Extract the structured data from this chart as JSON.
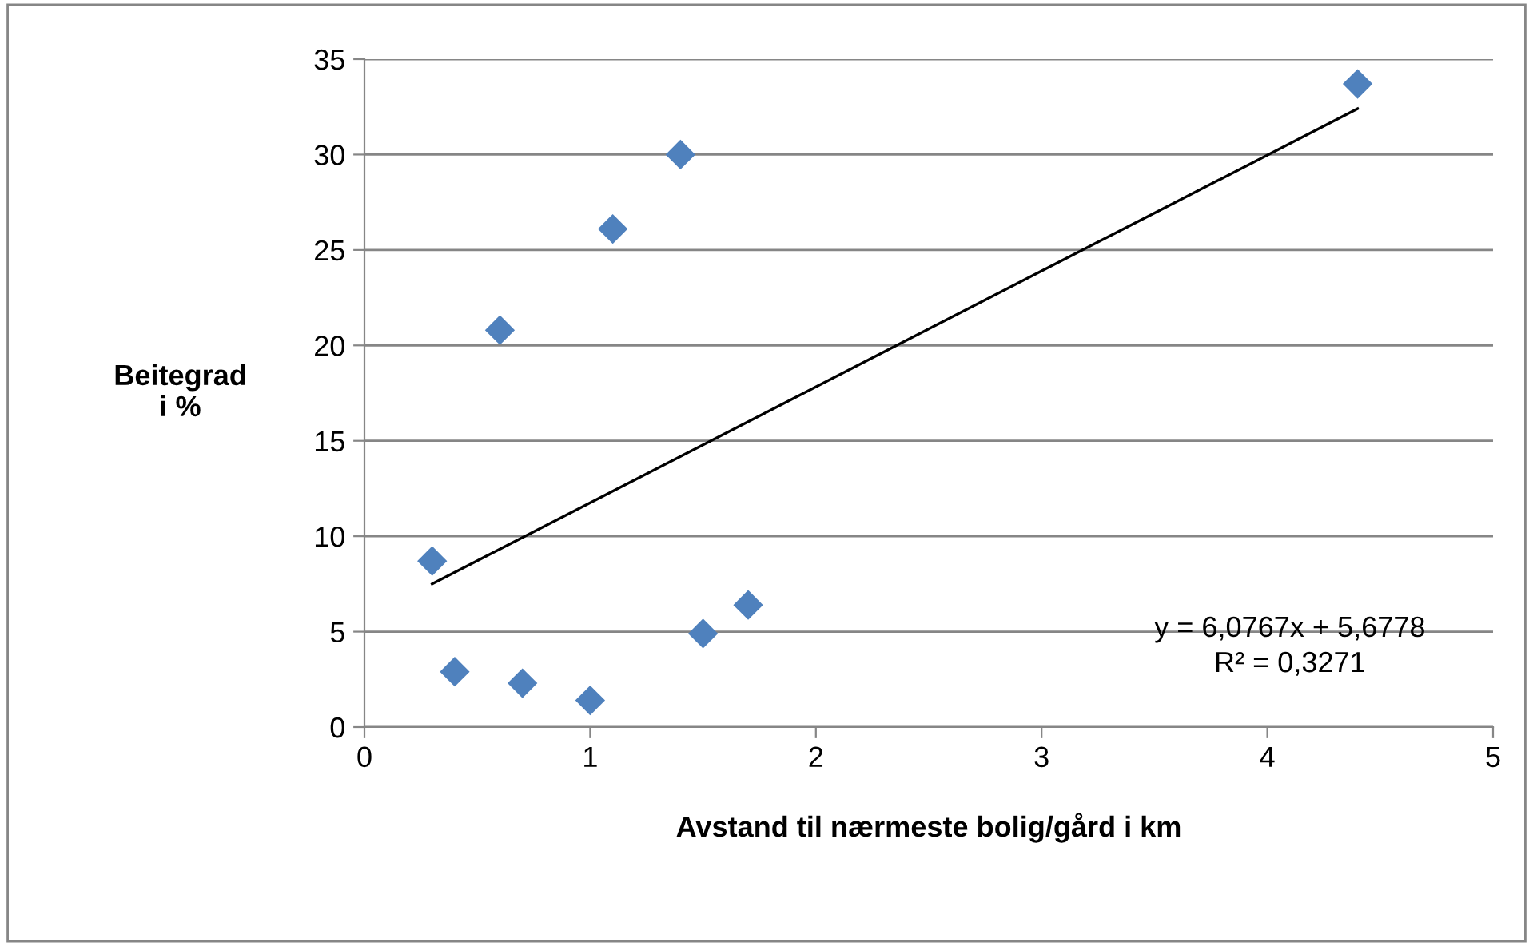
{
  "chart_data": {
    "type": "scatter",
    "xlabel": "Avstand til nærmeste bolig/gård i km",
    "ylabel": "Beitegrad\ni %",
    "series": [
      {
        "color": "#4f81bd",
        "marker": "diamond",
        "x": [
          0.3,
          0.4,
          0.6,
          0.7,
          1.0,
          1.1,
          1.4,
          1.5,
          1.7,
          4.4
        ],
        "values": [
          8.7,
          2.9,
          20.8,
          2.3,
          1.4,
          26.1,
          30.0,
          4.9,
          6.4,
          33.7
        ]
      },
      {
        "type": "line",
        "color": "#000000",
        "marker": "none",
        "line_style": "solid",
        "x": [
          0.3,
          4.4
        ],
        "values": [
          7.5,
          32.4
        ]
      }
    ],
    "annotations": [
      "y = 6,0767x + 5,6778\nR² = 0,3271"
    ],
    "xlim": [
      0,
      5
    ],
    "xticks": [
      0,
      1,
      2,
      3,
      4,
      5
    ],
    "ylim": [
      0,
      35
    ],
    "yticks": [
      0,
      5,
      10,
      15,
      20,
      25,
      30,
      35
    ],
    "grid": "y",
    "legend": false
  }
}
